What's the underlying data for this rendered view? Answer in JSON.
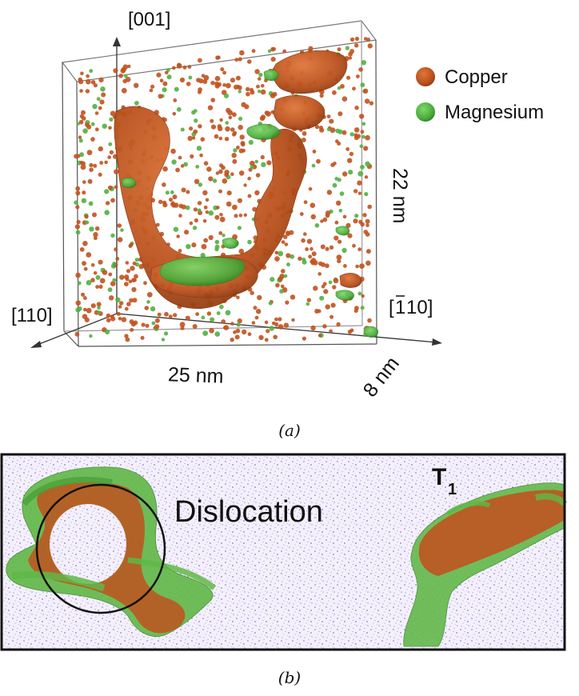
{
  "panel_a": {
    "axis_001": "[001]",
    "axis_110": "[110]",
    "axis_m110_bar": "1",
    "axis_m110_rest": "10]",
    "axis_m110_open": "[",
    "dim_x": "25 nm",
    "dim_y": "22 nm",
    "dim_z": "8 nm",
    "legend": [
      {
        "label": "Copper",
        "color": "#c0521f"
      },
      {
        "label": "Magnesium",
        "color": "#52b043"
      }
    ],
    "caption": "(a)"
  },
  "panel_b": {
    "label_dislocation": "Dislocation",
    "label_t": "T",
    "label_t_sub": "1",
    "caption": "(b)"
  },
  "colors": {
    "copper": "#c0521f",
    "magnesium": "#52b043",
    "matrix_dots": "#8f78d0"
  }
}
